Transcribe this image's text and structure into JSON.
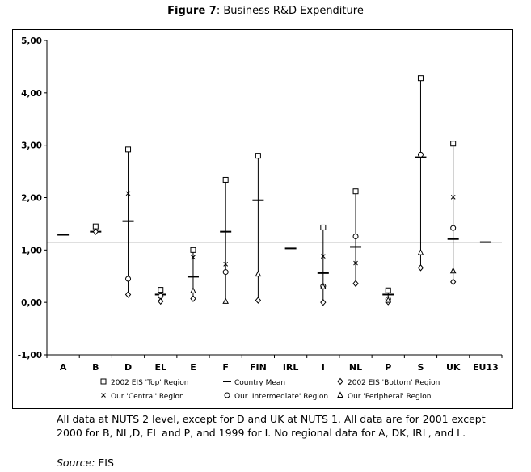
{
  "figure": {
    "label": "Figure 7",
    "label_suffix": ":",
    "title": "Business R&D Expenditure"
  },
  "caption": "All data at NUTS 2 level, except for D and UK at NUTS 1. All data are for 2001 except 2000 for B, NL,D, EL and P, and 1999 for I. No regional data for A, DK, IRL, and L.",
  "source": {
    "label": "Source:",
    "value": "EIS"
  },
  "chart_data": {
    "type": "scatter",
    "categories": [
      "A",
      "B",
      "D",
      "EL",
      "E",
      "F",
      "FIN",
      "IRL",
      "I",
      "NL",
      "P",
      "S",
      "UK",
      "EU13"
    ],
    "ylim": [
      -1.0,
      5.0
    ],
    "yticks": [
      "-1,00",
      "0,00",
      "1,00",
      "2,00",
      "3,00",
      "4,00",
      "5,00"
    ],
    "reference_line": 1.15,
    "legend_position": "bottom",
    "series": [
      {
        "name": "2002 EIS 'Top' Region",
        "marker": "square",
        "values": [
          null,
          1.45,
          2.92,
          0.24,
          1.0,
          2.34,
          2.8,
          null,
          1.43,
          2.12,
          0.23,
          4.28,
          3.03,
          null
        ]
      },
      {
        "name": "Country Mean",
        "marker": "dash",
        "values": [
          1.29,
          1.35,
          1.55,
          0.15,
          0.49,
          1.35,
          1.95,
          1.03,
          0.56,
          1.06,
          0.15,
          2.77,
          1.21,
          1.15
        ]
      },
      {
        "name": "2002 EIS 'Bottom' Region",
        "marker": "diamond",
        "values": [
          null,
          1.35,
          0.15,
          0.02,
          0.07,
          null,
          0.04,
          null,
          0.0,
          0.36,
          0.01,
          0.66,
          0.39,
          null
        ]
      },
      {
        "name": "Our 'Central' Region",
        "marker": "x",
        "values": [
          null,
          null,
          2.08,
          0.07,
          0.86,
          0.73,
          null,
          null,
          0.88,
          0.75,
          null,
          2.8,
          2.01,
          null
        ]
      },
      {
        "name": "Our 'Intermediate' Region",
        "marker": "circle",
        "values": [
          null,
          null,
          0.45,
          0.12,
          null,
          0.58,
          null,
          null,
          0.31,
          1.26,
          0.06,
          2.82,
          1.42,
          null
        ]
      },
      {
        "name": "Our 'Peripheral' Region",
        "marker": "triangle",
        "values": [
          null,
          null,
          null,
          null,
          0.22,
          0.02,
          0.54,
          null,
          0.3,
          null,
          0.04,
          0.95,
          0.6,
          null
        ]
      }
    ]
  }
}
